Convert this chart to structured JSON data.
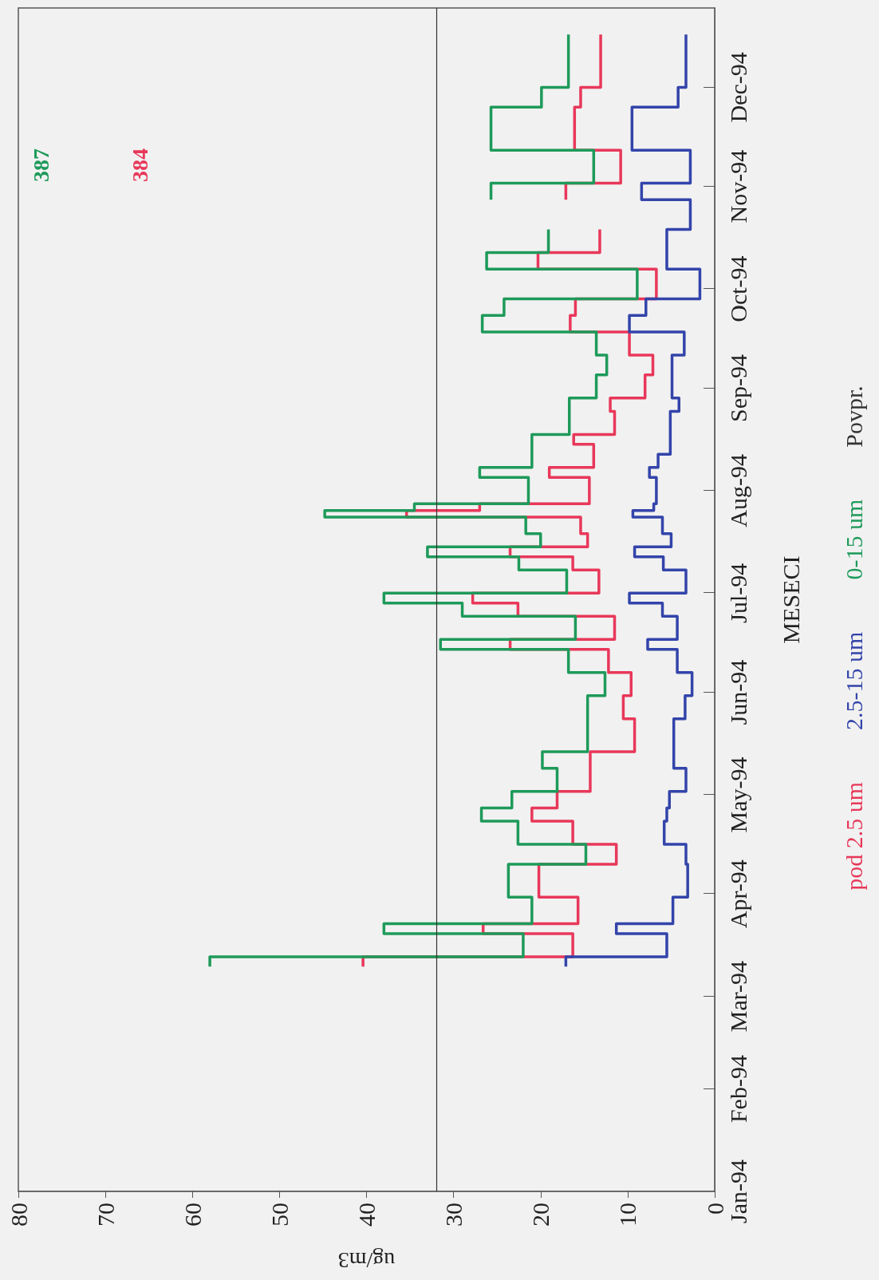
{
  "chart_data": {
    "type": "step",
    "orientation": "horizontal",
    "xlabel": "ug/m3",
    "ylabel": "MESECI",
    "xlim": [
      80,
      0
    ],
    "xticks": [
      0,
      10,
      20,
      30,
      40,
      50,
      60,
      70,
      80
    ],
    "ylim": [
      "1994-01-01",
      "1994-12-25"
    ],
    "yticks": [
      {
        "value": "1994-01-01",
        "label": "Jan-94"
      },
      {
        "value": "1994-02-01",
        "label": "Feb-94"
      },
      {
        "value": "1994-03-01",
        "label": "Mar-94"
      },
      {
        "value": "1994-04-01",
        "label": "Apr-94"
      },
      {
        "value": "1994-05-01",
        "label": "May-94"
      },
      {
        "value": "1994-06-01",
        "label": "Jun-94"
      },
      {
        "value": "1994-07-01",
        "label": "Jul-94"
      },
      {
        "value": "1994-08-01",
        "label": "Aug-94"
      },
      {
        "value": "1994-09-01",
        "label": "Sep-94"
      },
      {
        "value": "1994-10-01",
        "label": "Oct-94"
      },
      {
        "value": "1994-11-01",
        "label": "Nov-94"
      },
      {
        "value": "1994-12-01",
        "label": "Dec-94"
      }
    ],
    "legend": "right",
    "marker": "none",
    "line_style": "solid",
    "ref_lines": [
      {
        "axis": "x",
        "value": 32,
        "label": "Povpr.",
        "color": "#333333"
      }
    ],
    "series": [
      {
        "name": "pod 2.5 um",
        "color": "#e8385a",
        "x": [
          "1994-03-10",
          "1994-03-13",
          "1994-03-20",
          "1994-03-23",
          "1994-03-31",
          "1994-04-10",
          "1994-04-16",
          "1994-04-23",
          "1994-04-27",
          "1994-05-02",
          "1994-05-14",
          "1994-05-24",
          "1994-05-31",
          "1994-06-07",
          "1994-06-14",
          "1994-06-17",
          "1994-06-24",
          "1994-06-28",
          "1994-07-01",
          "1994-07-08",
          "1994-07-12",
          "1994-07-15",
          "1994-07-19",
          "1994-07-24",
          "1994-07-26",
          "1994-07-28",
          "1994-08-05",
          "1994-08-08",
          "1994-08-15",
          "1994-08-18",
          "1994-08-25",
          "1994-08-29",
          "1994-09-05",
          "1994-09-11",
          "1994-09-18",
          "1994-09-23",
          "1994-09-28",
          "1994-10-07",
          "1994-10-12",
          "1994-10-19",
          "1994-10-28",
          "1994-11-02",
          "1994-11-12",
          "1994-11-25",
          "1994-12-01",
          "1994-12-17"
        ],
        "values": [
          40.4,
          16.3,
          26.6,
          15.7,
          20.2,
          11.3,
          16.3,
          21,
          18.1,
          14.3,
          9.2,
          10.5,
          9.6,
          12.2,
          23.5,
          11.5,
          22.6,
          27.8,
          13.3,
          16.3,
          23.5,
          14.6,
          15.4,
          35.4,
          27,
          14.4,
          19,
          13.9,
          16.2,
          11.5,
          12,
          8,
          7.1,
          9.8,
          16.6,
          16,
          6.7,
          20.3,
          13.2,
          null,
          17.1,
          10.8,
          16.1,
          15.4,
          13.1,
          13.1
        ],
        "value_labels": [
          null,
          null,
          null,
          null,
          null,
          null,
          null,
          null,
          null,
          null,
          null,
          null,
          null,
          null,
          null,
          null,
          null,
          null,
          null,
          null,
          null,
          null,
          null,
          null,
          null,
          null,
          null,
          null,
          null,
          null,
          null,
          null,
          null,
          null,
          null,
          null,
          null,
          null,
          null,
          "384",
          null,
          null,
          null,
          null,
          null,
          null
        ]
      },
      {
        "name": "2.5-15 um",
        "color": "#3344aa",
        "x": [
          "1994-03-10",
          "1994-03-13",
          "1994-03-20",
          "1994-03-23",
          "1994-03-31",
          "1994-04-10",
          "1994-04-16",
          "1994-04-23",
          "1994-04-27",
          "1994-05-02",
          "1994-05-09",
          "1994-05-24",
          "1994-05-31",
          "1994-06-07",
          "1994-06-14",
          "1994-06-17",
          "1994-06-24",
          "1994-06-28",
          "1994-07-01",
          "1994-07-08",
          "1994-07-12",
          "1994-07-15",
          "1994-07-19",
          "1994-07-24",
          "1994-07-26",
          "1994-07-28",
          "1994-08-05",
          "1994-08-08",
          "1994-08-12",
          "1994-08-25",
          "1994-08-29",
          "1994-09-11",
          "1994-09-18",
          "1994-09-23",
          "1994-09-28",
          "1994-10-07",
          "1994-10-19",
          "1994-10-28",
          "1994-11-02",
          "1994-11-12",
          "1994-11-25",
          "1994-12-01",
          "1994-12-17"
        ],
        "values": [
          17.1,
          5.5,
          11.3,
          4.8,
          3.1,
          3.3,
          5.8,
          5.5,
          5.2,
          3.3,
          4.7,
          3.4,
          2.6,
          4.3,
          7.7,
          4.3,
          6,
          9.8,
          3.3,
          5.9,
          9.2,
          5,
          6,
          9.4,
          7,
          6.7,
          7.5,
          6.5,
          5.1,
          4.1,
          4.9,
          3.5,
          9.8,
          7.9,
          1.7,
          5.5,
          2.8,
          8.4,
          2.8,
          9.5,
          4.2,
          3.3,
          3.3
        ]
      },
      {
        "name": "0-15 um",
        "color": "#1e9a5a",
        "x": [
          "1994-03-10",
          "1994-03-13",
          "1994-03-20",
          "1994-03-23",
          "1994-03-31",
          "1994-04-10",
          "1994-04-16",
          "1994-04-23",
          "1994-04-27",
          "1994-05-02",
          "1994-05-09",
          "1994-05-14",
          "1994-05-31",
          "1994-06-07",
          "1994-06-14",
          "1994-06-17",
          "1994-06-24",
          "1994-06-28",
          "1994-07-01",
          "1994-07-08",
          "1994-07-12",
          "1994-07-15",
          "1994-07-19",
          "1994-07-24",
          "1994-07-26",
          "1994-07-28",
          "1994-08-05",
          "1994-08-08",
          "1994-08-18",
          "1994-08-29",
          "1994-09-05",
          "1994-09-11",
          "1994-09-18",
          "1994-09-23",
          "1994-09-28",
          "1994-10-07",
          "1994-10-12",
          "1994-10-19",
          "1994-10-28",
          "1994-11-02",
          "1994-11-12",
          "1994-11-25",
          "1994-12-01",
          "1994-12-17"
        ],
        "values": [
          58,
          22,
          38,
          21,
          23.7,
          14.8,
          22.6,
          26.8,
          23.3,
          18.1,
          19.8,
          14.6,
          12.6,
          16.8,
          31.5,
          16,
          29,
          38,
          17,
          22.5,
          33,
          20,
          21.7,
          44.8,
          34.5,
          21.4,
          27,
          21,
          16.7,
          13.6,
          12.4,
          13.6,
          26.7,
          24.2,
          8.9,
          26.2,
          19.1,
          null,
          25.7,
          13.9,
          25.7,
          19.9,
          16.8,
          16.8
        ],
        "value_labels": [
          null,
          null,
          null,
          null,
          null,
          null,
          null,
          null,
          null,
          null,
          null,
          null,
          null,
          null,
          null,
          null,
          null,
          null,
          null,
          null,
          null,
          null,
          null,
          null,
          null,
          null,
          null,
          null,
          null,
          null,
          null,
          null,
          null,
          null,
          null,
          null,
          null,
          "387",
          null,
          null,
          null,
          null,
          null,
          null
        ]
      }
    ]
  }
}
